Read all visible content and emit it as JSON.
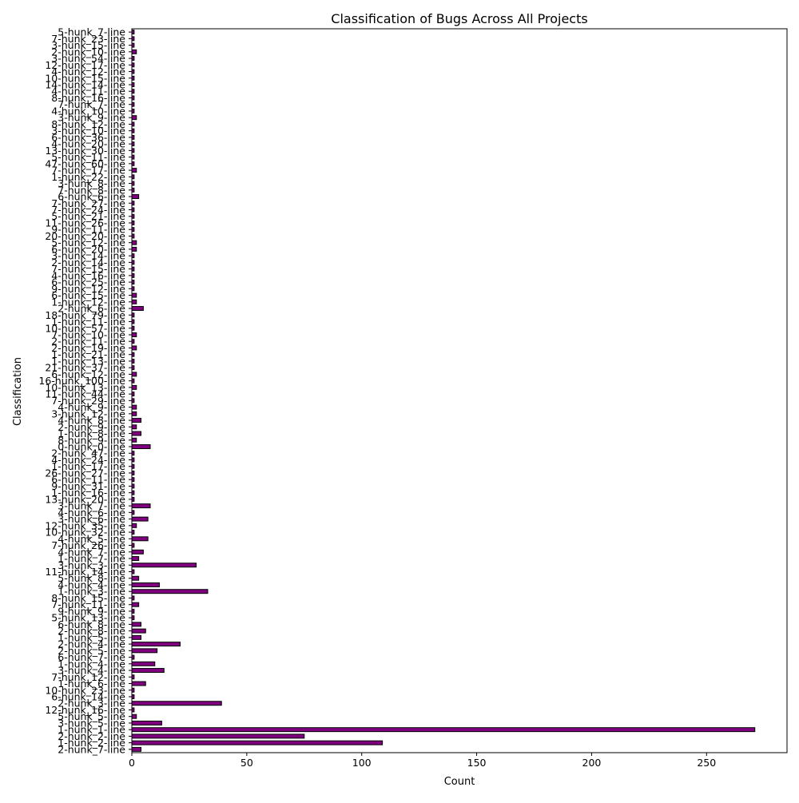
{
  "chart_data": {
    "type": "bar",
    "orientation": "horizontal",
    "title": "Classification of Bugs Across All Projects",
    "xlabel": "Count",
    "ylabel": "Classification",
    "xlim": [
      0,
      285
    ],
    "xticks": [
      0,
      50,
      100,
      150,
      200,
      250
    ],
    "grid": false,
    "legend": "none",
    "bar_color": "#800080",
    "bar_edge_color": "#000000",
    "categories": [
      "2-hunk_7-line",
      "1-hunk_2-line",
      "2-hunk_2-line",
      "1-hunk_1-line",
      "3-hunk_5-line",
      "5-hunk_5-line",
      "12-hunk_16-line",
      "2-hunk_3-line",
      "6-hunk_14-line",
      "10-hunk_23-line",
      "1-hunk_6-line",
      "7-hunk_12-line",
      "3-hunk_4-line",
      "1-hunk_4-line",
      "6-hunk_7-line",
      "2-hunk_5-line",
      "2-hunk_4-line",
      "1-hunk_5-line",
      "2-hunk_8-line",
      "6-hunk_8-line",
      "5-hunk_13-line",
      "9-hunk_9-line",
      "7-hunk_11-line",
      "8-hunk_15-line",
      "1-hunk_3-line",
      "4-hunk_4-line",
      "5-hunk_8-line",
      "11-hunk_14-line",
      "3-hunk_3-line",
      "1-hunk_7-line",
      "4-hunk_7-line",
      "7-hunk_26-line",
      "4-hunk_5-line",
      "10-hunk_32-line",
      "12-hunk_35-line",
      "3-hunk_6-line",
      "4-hunk_6-line",
      "3-hunk_7-line",
      "13-hunk_20-line",
      "1-hunk_16-line",
      "9-hunk_31-line",
      "6-hunk_11-line",
      "26-hunk_27-line",
      "1-hunk_17-line",
      "4-hunk_24-line",
      "2-hunk_47-line",
      "0-hunk_0-line",
      "8-hunk_9-line",
      "1-hunk_8-line",
      "2-hunk_9-line",
      "4-hunk_8-line",
      "3-hunk_12-line",
      "4-hunk_9-line",
      "7-hunk_29-line",
      "11-hunk_44-line",
      "10-hunk_13-line",
      "16-hunk_100-line",
      "6-hunk_12-line",
      "21-hunk_37-line",
      "1-hunk_13-line",
      "1-hunk_21-line",
      "2-hunk_19-line",
      "2-hunk_11-line",
      "7-hunk_10-line",
      "10-hunk_57-line",
      "1-hunk_11-line",
      "18-hunk_79-line",
      "2-hunk_6-line",
      "1-hunk_12-line",
      "6-hunk_15-line",
      "9-hunk_12-line",
      "6-hunk_25-line",
      "4-hunk_16-line",
      "7-hunk_15-line",
      "2-hunk_14-line",
      "3-hunk_14-line",
      "6-hunk_20-line",
      "5-hunk_12-line",
      "20-hunk_20-line",
      "9-hunk_11-line",
      "11-hunk_26-line",
      "5-hunk_21-line",
      "7-hunk_24-line",
      "7-hunk_27-line",
      "6-hunk_6-line",
      "7-hunk_8-line",
      "3-hunk_8-line",
      "1-hunk_22-line",
      "7-hunk_17-line",
      "47-hunk_60-line",
      "5-hunk_11-line",
      "13-hunk_30-line",
      "4-hunk_20-line",
      "6-hunk_36-line",
      "3-hunk_10-line",
      "8-hunk_12-line",
      "3-hunk_9-line",
      "4-hunk_10-line",
      "7-hunk_7-line",
      "8-hunk_16-line",
      "4-hunk_11-line",
      "14-hunk_14-line",
      "10-hunk_15-line",
      "4-hunk_12-line",
      "12-hunk_17-line",
      "3-hunk_54-line",
      "2-hunk_10-line",
      "3-hunk_15-line",
      "7-hunk_23-line",
      "5-hunk_7-line"
    ],
    "values": [
      4,
      109,
      75,
      271,
      13,
      2,
      1,
      39,
      1,
      1,
      6,
      1,
      14,
      10,
      1,
      11,
      21,
      4,
      6,
      4,
      1,
      1,
      3,
      1,
      33,
      12,
      3,
      1,
      28,
      3,
      5,
      1,
      7,
      1,
      2,
      7,
      1,
      8,
      1,
      1,
      1,
      1,
      1,
      1,
      1,
      1,
      8,
      2,
      4,
      2,
      4,
      2,
      2,
      1,
      1,
      2,
      1,
      2,
      1,
      1,
      1,
      2,
      1,
      2,
      1,
      1,
      1,
      5,
      2,
      2,
      1,
      1,
      1,
      1,
      1,
      1,
      2,
      2,
      1,
      1,
      1,
      1,
      1,
      1,
      3,
      1,
      1,
      1,
      2,
      1,
      1,
      1,
      1,
      1,
      1,
      1,
      2,
      1,
      1,
      1,
      1,
      1,
      1,
      1,
      1,
      1,
      2,
      1,
      1,
      1
    ]
  }
}
